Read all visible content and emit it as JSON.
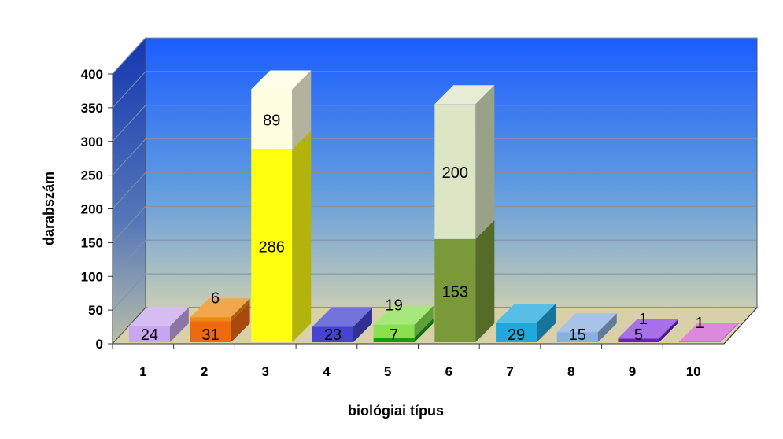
{
  "chart_data": {
    "type": "bar",
    "stacked": true,
    "style": "3d",
    "xlabel": "biológiai típus",
    "ylabel": "darabszám",
    "ylim": [
      0,
      400
    ],
    "yticks": [
      "0",
      "50",
      "100",
      "150",
      "200",
      "250",
      "300",
      "350",
      "400"
    ],
    "categories": [
      "1",
      "2",
      "3",
      "4",
      "5",
      "6",
      "7",
      "8",
      "9",
      "10"
    ],
    "series": [
      {
        "values": [
          24,
          31,
          286,
          23,
          7,
          153,
          29,
          15,
          5,
          0
        ],
        "colors": [
          "#c9a6f0",
          "#ee6a10",
          "#ffff10",
          "#4444d0",
          "#10a010",
          "#7a9a3a",
          "#20a8dc",
          "#8ab0e0",
          "#6a20c0",
          "#c040c0"
        ]
      },
      {
        "values": [
          0,
          6,
          89,
          0,
          19,
          200,
          0,
          0,
          1,
          1
        ],
        "colors": [
          "#c9a6f0",
          "#ee8a10",
          "#fffee0",
          "#4444d0",
          "#8ae050",
          "#dce6c4",
          "#20a8dc",
          "#8ab0e0",
          "#8a40e0",
          "#d060d0"
        ]
      }
    ],
    "data_labels": [
      {
        "category": "1",
        "text": "24"
      },
      {
        "category": "2",
        "text": "31"
      },
      {
        "category": "2",
        "text": "6"
      },
      {
        "category": "3",
        "text": "286"
      },
      {
        "category": "3",
        "text": "89"
      },
      {
        "category": "4",
        "text": "23"
      },
      {
        "category": "5",
        "text": "7"
      },
      {
        "category": "5",
        "text": "19"
      },
      {
        "category": "6",
        "text": "153"
      },
      {
        "category": "6",
        "text": "200"
      },
      {
        "category": "7",
        "text": "29"
      },
      {
        "category": "8",
        "text": "15"
      },
      {
        "category": "9",
        "text": "5"
      },
      {
        "category": "9",
        "text": "1"
      },
      {
        "category": "10",
        "text": "1"
      }
    ],
    "grid": true,
    "legend": "none",
    "background": {
      "wall_top": "#1a5cff",
      "wall_bottom": "#c8cdb4",
      "floor": "#d8d0a8"
    }
  }
}
